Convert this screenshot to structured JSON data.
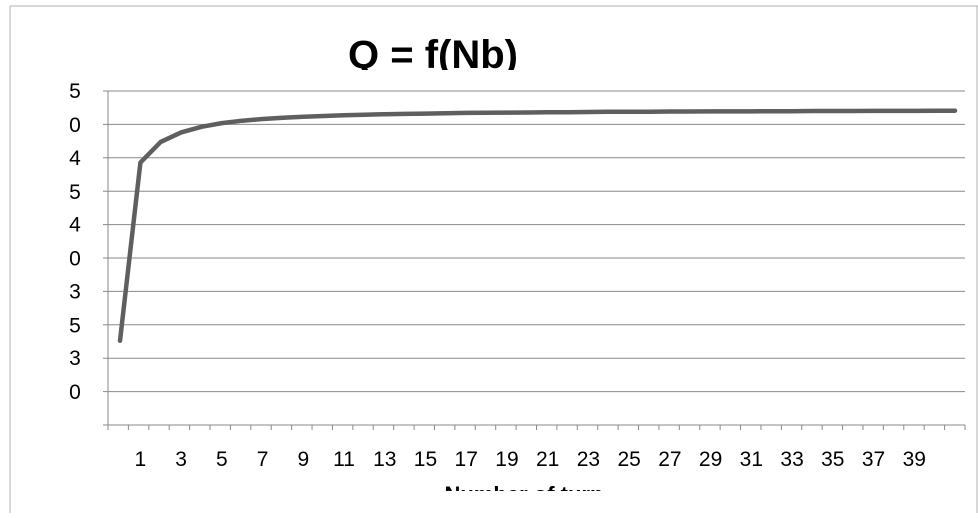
{
  "chart_data": {
    "type": "line",
    "title": "Q = f(Nb)",
    "xlabel": "Number of turn",
    "ylabel": "",
    "y_tick_labels": [
      {
        "top": "5",
        "bottom": "0"
      },
      {
        "top": "4",
        "bottom": "5"
      },
      {
        "top": "4",
        "bottom": "0"
      },
      {
        "top": "3",
        "bottom": "5"
      },
      {
        "top": "3",
        "bottom": "0"
      }
    ],
    "ylim": [
      30,
      51
    ],
    "x_tick_labels": [
      "1",
      "3",
      "5",
      "7",
      "9",
      "11",
      "13",
      "15",
      "17",
      "19",
      "21",
      "23",
      "25",
      "27",
      "29",
      "31",
      "33",
      "35",
      "37",
      "39"
    ],
    "grid": true,
    "series": [
      {
        "color": "#5f5f5f",
        "x": [
          0,
          1,
          2,
          3,
          4,
          5,
          6,
          7,
          8,
          9,
          10,
          11,
          12,
          13,
          14,
          15,
          16,
          17,
          18,
          19,
          20,
          21,
          22,
          23,
          24,
          25,
          26,
          27,
          28,
          29,
          30,
          31,
          32,
          33,
          34,
          35,
          36,
          37,
          38,
          39,
          40,
          41
        ],
        "values": [
          35.3,
          46.5,
          47.8,
          48.4,
          48.75,
          48.98,
          49.13,
          49.24,
          49.32,
          49.38,
          49.43,
          49.47,
          49.51,
          49.54,
          49.56,
          49.58,
          49.6,
          49.62,
          49.63,
          49.64,
          49.65,
          49.66,
          49.67,
          49.68,
          49.69,
          49.69,
          49.7,
          49.71,
          49.71,
          49.72,
          49.72,
          49.72,
          49.73,
          49.73,
          49.74,
          49.74,
          49.74,
          49.75,
          49.75,
          49.75,
          49.76,
          49.76
        ]
      }
    ]
  }
}
